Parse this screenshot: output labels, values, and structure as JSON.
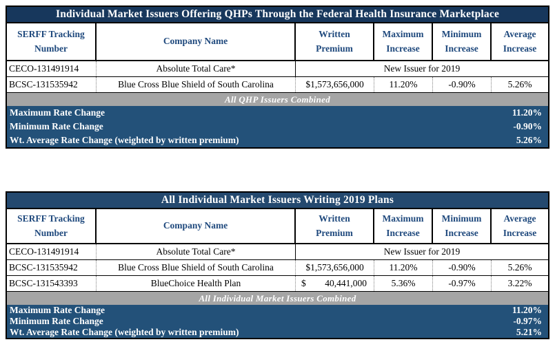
{
  "colors": {
    "table1_title_bg": "#17375C",
    "table2_title_bg": "#24496F",
    "header_text": "#1F497D",
    "summary_bg": "#235179",
    "band_bg": "#A5A5A5",
    "border": "#000000"
  },
  "tables": [
    {
      "title": "Individual Market Issuers Offering QHPs Through the Federal Health Insurance Marketplace",
      "headers": {
        "serff": {
          "line1": "SERFF Tracking",
          "line2": "Number"
        },
        "company": "Company Name",
        "premium": {
          "line1": "Written",
          "line2": "Premium"
        },
        "max": {
          "line1": "Maximum",
          "line2": "Increase"
        },
        "min": {
          "line1": "Minimum",
          "line2": "Increase"
        },
        "avg": {
          "line1": "Average",
          "line2": "Increase"
        }
      },
      "new_issuer_row": {
        "serff": "CECO-131491914",
        "company": "Absolute Total Care*",
        "note": "New Issuer for 2019"
      },
      "data_rows": [
        {
          "serff": "BCSC-131535942",
          "company": "Blue Cross Blue Shield of South Carolina",
          "premium": "$1,573,656,000",
          "max": "11.20%",
          "min": "-0.90%",
          "avg": "5.26%"
        }
      ],
      "band_label": "All QHP Issuers Combined",
      "summary_rows": [
        {
          "label": "Maximum Rate Change",
          "value": "11.20%"
        },
        {
          "label": "Minimum Rate Change",
          "value": "-0.90%"
        },
        {
          "label": "Wt. Average Rate Change (weighted by written premium)",
          "value": "5.26%"
        }
      ]
    },
    {
      "title": "All Individual Market Issuers Writing 2019 Plans",
      "headers": {
        "serff": {
          "line1": "SERFF Tracking",
          "line2": "Number"
        },
        "company": "Company Name",
        "premium": {
          "line1": "Written",
          "line2": "Premium"
        },
        "max": {
          "line1": "Maximum",
          "line2": "Increase"
        },
        "min": {
          "line1": "Minimum",
          "line2": "Increase"
        },
        "avg": {
          "line1": "Average",
          "line2": "Increase"
        }
      },
      "new_issuer_row": {
        "serff": "CECO-131491914",
        "company": "Absolute Total Care*",
        "note": "New Issuer for 2019"
      },
      "data_rows": [
        {
          "serff": "BCSC-131535942",
          "company": "Blue Cross Blue Shield of South Carolina",
          "premium": "$1,573,656,000",
          "max": "11.20%",
          "min": "-0.90%",
          "avg": "5.26%"
        },
        {
          "serff": "BCSC-131543393",
          "company": "BlueChoice Health Plan",
          "premium_currency": "$",
          "premium_amount": "40,441,000",
          "max": "5.36%",
          "min": "-0.97%",
          "avg": "3.22%"
        }
      ],
      "band_label": "All Individual Market Issuers Combined",
      "summary_rows": [
        {
          "label": "Maximum Rate Change",
          "value": "11.20%"
        },
        {
          "label": "Minimum Rate Change",
          "value": "-0.97%"
        },
        {
          "label": "Wt. Average Rate Change (weighted by written premium)",
          "value": "5.21%"
        }
      ]
    }
  ]
}
